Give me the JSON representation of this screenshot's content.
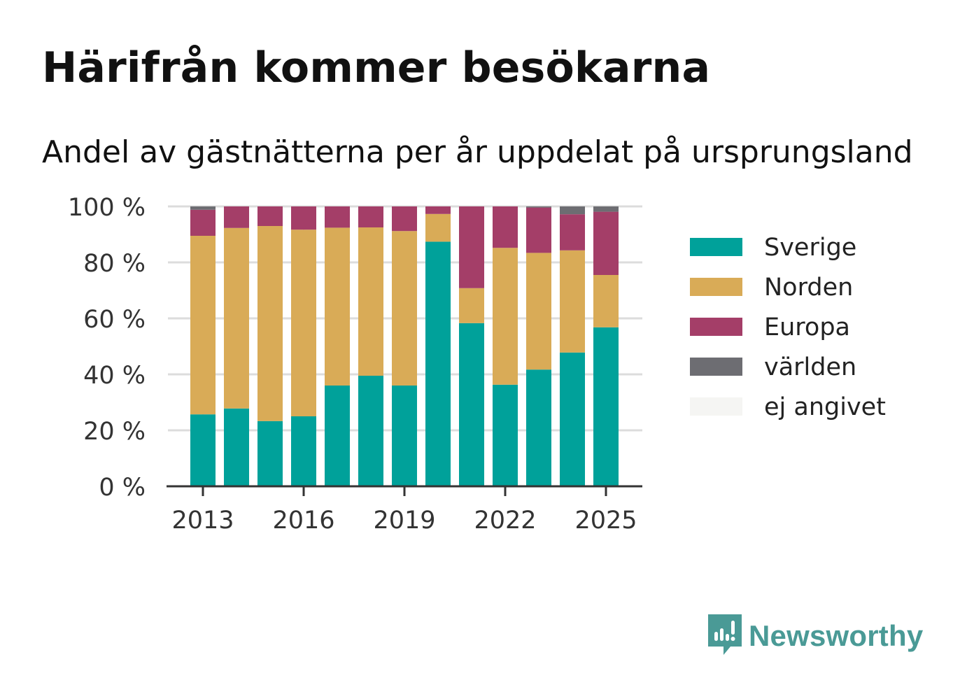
{
  "header": {
    "title": "Härifrån kommer besökarna",
    "subtitle": "Andel av gästnätterna per år uppdelat på ursprungsland"
  },
  "brand": {
    "name": "Newsworthy",
    "icon": "newsworthy-logo-icon",
    "color": "#4a9a96"
  },
  "chart_data": {
    "type": "bar",
    "stacked": true,
    "categories": [
      "2013",
      "2014",
      "2015",
      "2016",
      "2017",
      "2018",
      "2019",
      "2020",
      "2021",
      "2022",
      "2023",
      "2024",
      "2025"
    ],
    "x_tick_labels": [
      "2013",
      "2016",
      "2019",
      "2022",
      "2025"
    ],
    "y_tick_labels": [
      "0 %",
      "20 %",
      "40 %",
      "60 %",
      "80 %",
      "100 %"
    ],
    "ylim": [
      0,
      100
    ],
    "grid": true,
    "legend_position": "right",
    "series": [
      {
        "name": "Sverige",
        "color": "#00a19a",
        "values": [
          25.7,
          27.8,
          23.3,
          25.0,
          36.0,
          39.5,
          36.0,
          87.4,
          58.3,
          36.3,
          41.7,
          47.8,
          56.8
        ]
      },
      {
        "name": "Norden",
        "color": "#d9ab57",
        "values": [
          63.8,
          64.5,
          69.7,
          66.7,
          56.4,
          53.0,
          55.2,
          9.9,
          12.5,
          48.9,
          41.7,
          36.5,
          18.7
        ]
      },
      {
        "name": "Europa",
        "color": "#a43e68",
        "values": [
          9.3,
          7.7,
          7.0,
          8.3,
          7.6,
          7.5,
          8.8,
          2.7,
          29.2,
          14.8,
          16.2,
          12.9,
          22.6
        ]
      },
      {
        "name": "världen",
        "color": "#6d6d72",
        "values": [
          1.2,
          0,
          0,
          0,
          0,
          0,
          0,
          0,
          0,
          0,
          0.4,
          2.8,
          1.9
        ]
      },
      {
        "name": "ej angivet",
        "color": "#f5f5f3",
        "values": [
          0,
          0,
          0,
          0,
          0,
          0,
          0,
          0,
          0,
          0,
          0,
          0,
          0
        ]
      }
    ]
  }
}
